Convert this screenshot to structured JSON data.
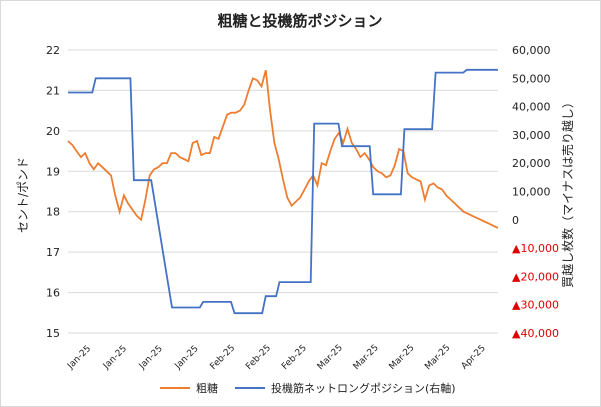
{
  "chart_data": {
    "type": "line",
    "title": "粗糖と投機筋ポジション",
    "ylabel_left": "セント/ポンド",
    "ylabel_right": "買越し枚数（マイナスは売り越し）",
    "left_axis": {
      "min": 15,
      "max": 22,
      "ticks": [
        "15",
        "16",
        "17",
        "18",
        "19",
        "20",
        "21",
        "22"
      ]
    },
    "right_axis": {
      "min": -40000,
      "max": 60000,
      "ticks": [
        {
          "value": 60000,
          "label": "60,000"
        },
        {
          "value": 50000,
          "label": "50,000"
        },
        {
          "value": 40000,
          "label": "40,000"
        },
        {
          "value": 30000,
          "label": "30,000"
        },
        {
          "value": 20000,
          "label": "20,000"
        },
        {
          "value": 10000,
          "label": "10,000"
        },
        {
          "value": 0,
          "label": "0"
        },
        {
          "value": -10000,
          "label": "▲10,000"
        },
        {
          "value": -20000,
          "label": "▲20,000"
        },
        {
          "value": -30000,
          "label": "▲30,000"
        },
        {
          "value": -40000,
          "label": "▲40,000"
        }
      ],
      "negative_color": "#e00000"
    },
    "x_tick_labels": [
      "Jan-25",
      "Jan-25",
      "Jan-25",
      "Jan-25",
      "Feb-25",
      "Feb-25",
      "Feb-25",
      "Mar-25",
      "Mar-25",
      "Mar-25",
      "Mar-25",
      "Apr-25"
    ],
    "grid": true,
    "legend_position": "bottom",
    "series": [
      {
        "name": "粗糖",
        "color": "#ed7d31",
        "axis": "left",
        "x": [
          0,
          1,
          2,
          3,
          4,
          5,
          6,
          7,
          8,
          9,
          10,
          11,
          12,
          13,
          14,
          15,
          16,
          17,
          18,
          19,
          20,
          21,
          22,
          23,
          24,
          25,
          26,
          27,
          28,
          29,
          30,
          31,
          32,
          33,
          34,
          35,
          36,
          37,
          38,
          39,
          40,
          41,
          42,
          43,
          44,
          45,
          46,
          47,
          48,
          49,
          50,
          51,
          52,
          53,
          54,
          55,
          56,
          57,
          58,
          59,
          60,
          61,
          62,
          63,
          64,
          65,
          66,
          67,
          68,
          69,
          70,
          71,
          72,
          73,
          74,
          75,
          76,
          77,
          78,
          79,
          80,
          81,
          82,
          83,
          84,
          85,
          86,
          87,
          88,
          89,
          90,
          91,
          92,
          93,
          94,
          95,
          96,
          97,
          98,
          99,
          100
        ],
        "values": [
          19.75,
          19.65,
          19.5,
          19.35,
          19.45,
          19.2,
          19.05,
          19.2,
          19.1,
          19.0,
          18.9,
          18.4,
          18.0,
          18.4,
          18.2,
          18.05,
          17.9,
          17.8,
          18.3,
          18.9,
          19.05,
          19.1,
          19.2,
          19.2,
          19.45,
          19.45,
          19.35,
          19.3,
          19.25,
          19.7,
          19.75,
          19.4,
          19.45,
          19.45,
          19.85,
          19.8,
          20.1,
          20.4,
          20.45,
          20.45,
          20.5,
          20.65,
          21.0,
          21.3,
          21.25,
          21.1,
          21.5,
          20.5,
          19.7,
          19.3,
          18.8,
          18.35,
          18.15,
          18.25,
          18.35,
          18.55,
          18.75,
          18.9,
          18.65,
          19.2,
          19.15,
          19.5,
          19.8,
          19.95,
          19.7,
          20.05,
          19.7,
          19.55,
          19.35,
          19.45,
          19.3,
          19.1,
          19.0,
          18.95,
          18.85,
          18.9,
          19.15,
          19.55,
          19.5,
          18.95,
          18.85,
          18.8,
          18.75,
          18.3,
          18.65,
          18.7,
          18.6,
          18.55,
          18.4,
          18.3,
          18.2,
          18.1,
          18.0,
          17.95,
          17.9,
          17.85,
          17.8,
          17.75,
          17.7,
          17.65,
          17.6
        ]
      },
      {
        "name": "投機筋ネットロングポジション(右軸)",
        "color": "#4472c4",
        "axis": "right",
        "steps": [
          {
            "x": 0,
            "value": 45000
          },
          {
            "x": 7,
            "value": 45000
          },
          {
            "x": 8,
            "value": 50000
          },
          {
            "x": 18,
            "value": 50000
          },
          {
            "x": 19,
            "value": 14000
          },
          {
            "x": 24,
            "value": 14000
          },
          {
            "x": 30,
            "value": -31000
          },
          {
            "x": 38,
            "value": -31000
          },
          {
            "x": 39,
            "value": -29000
          },
          {
            "x": 47,
            "value": -29000
          },
          {
            "x": 48,
            "value": -33000
          },
          {
            "x": 56,
            "value": -33000
          },
          {
            "x": 57,
            "value": -27000
          },
          {
            "x": 60,
            "value": -27000
          },
          {
            "x": 61,
            "value": -22000
          },
          {
            "x": 70,
            "value": -22000
          },
          {
            "x": 71,
            "value": 34000
          },
          {
            "x": 78,
            "value": 34000
          },
          {
            "x": 79,
            "value": 26000
          },
          {
            "x": 87,
            "value": 26000
          },
          {
            "x": 88,
            "value": 9000
          },
          {
            "x": 96,
            "value": 9000
          },
          {
            "x": 97,
            "value": 32000
          },
          {
            "x": 105,
            "value": 32000
          },
          {
            "x": 106,
            "value": 52000
          },
          {
            "x": 114,
            "value": 52000
          },
          {
            "x": 115,
            "value": 53000
          },
          {
            "x": 124,
            "value": 53000
          }
        ]
      }
    ]
  }
}
